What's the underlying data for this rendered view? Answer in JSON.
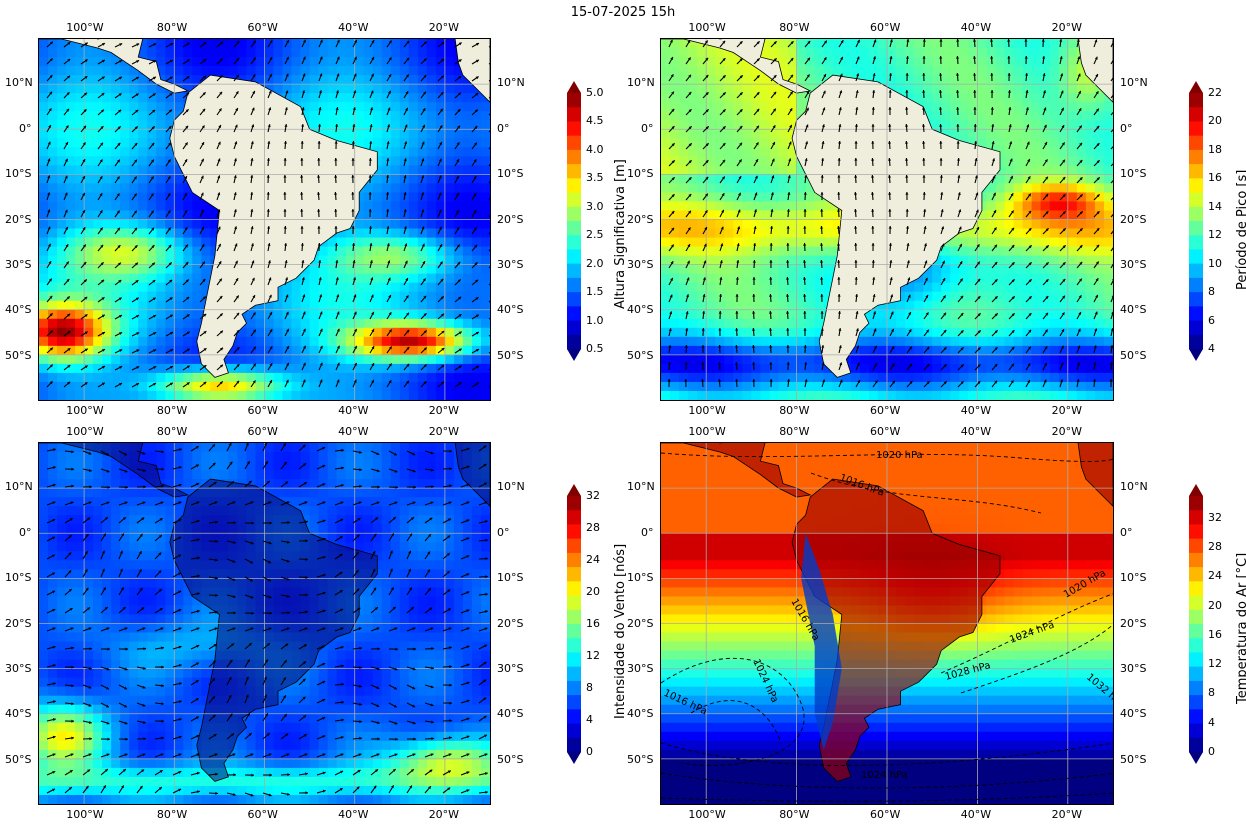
{
  "title": "15-07-2025 15h",
  "lon_ticks": [
    "100°W",
    "80°W",
    "60°W",
    "40°W",
    "20°W"
  ],
  "lat_ticks": [
    "10°N",
    "0°",
    "10°S",
    "20°S",
    "30°S",
    "40°S",
    "50°S"
  ],
  "panels": [
    {
      "id": "hs",
      "colorbar_label": "Altura Significativa [m]",
      "colorbar_ticks": [
        "0.5",
        "1.0",
        "1.5",
        "2.0",
        "2.5",
        "3.0",
        "3.5",
        "4.0",
        "4.5",
        "5.0"
      ],
      "colorbar_range": [
        0.5,
        5.0
      ]
    },
    {
      "id": "tp",
      "colorbar_label": "Período de Pico [s]",
      "colorbar_ticks": [
        "4",
        "6",
        "8",
        "10",
        "12",
        "14",
        "16",
        "18",
        "20",
        "22"
      ],
      "colorbar_range": [
        4,
        22
      ]
    },
    {
      "id": "wind",
      "colorbar_label": "Intensidade do Vento [nós]",
      "colorbar_ticks": [
        "0",
        "4",
        "8",
        "12",
        "16",
        "20",
        "24",
        "28",
        "32"
      ],
      "colorbar_range": [
        0,
        32
      ]
    },
    {
      "id": "temp",
      "colorbar_label": "Temperatura do Ar [°C]",
      "colorbar_ticks": [
        "0",
        "4",
        "8",
        "12",
        "16",
        "20",
        "24",
        "28",
        "32"
      ],
      "colorbar_range": [
        0,
        35
      ]
    }
  ],
  "pressure_labels": [
    "1020 hPa",
    "1016 hPa",
    "1016 hPa",
    "1020 hPa",
    "1024 hPa",
    "1024 hPa",
    "1028 hPa",
    "1032 hPa",
    "1016 hPa",
    "1024 hPa"
  ],
  "colors": {
    "land": "#efeedc",
    "ocean_low": "#0000aa",
    "ocean_high": "#aa0000"
  }
}
